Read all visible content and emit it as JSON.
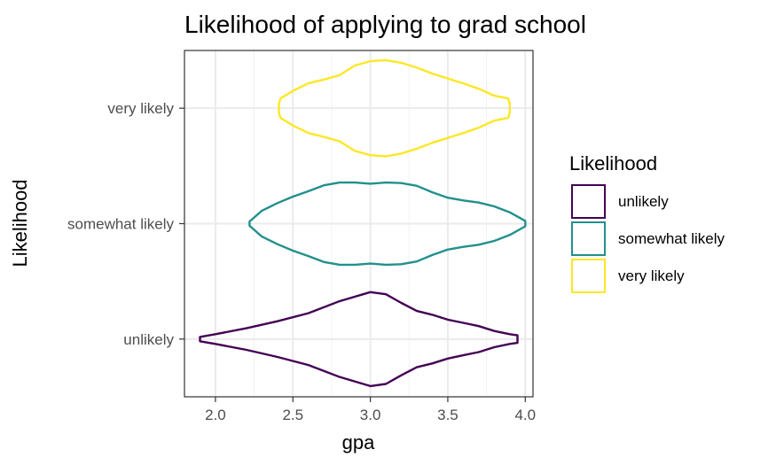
{
  "chart_data": {
    "type": "violin",
    "title": "Likelihood of applying to grad school",
    "xlabel": "gpa",
    "ylabel": "Likelihood",
    "xlim": [
      1.8,
      4.05
    ],
    "x_ticks": [
      "2.0",
      "2.5",
      "3.0",
      "3.5",
      "4.0"
    ],
    "x_tick_values": [
      2.0,
      2.5,
      3.0,
      3.5,
      4.0
    ],
    "categories": [
      "unlikely",
      "somewhat likely",
      "very likely"
    ],
    "grid": true,
    "legend": {
      "title": "Likelihood",
      "placement": "right",
      "entries": [
        "unlikely",
        "somewhat likely",
        "very likely"
      ]
    },
    "series": [
      {
        "name": "unlikely",
        "color": "#440154",
        "density": [
          [
            1.9,
            0.04
          ],
          [
            2.0,
            0.09
          ],
          [
            2.2,
            0.2
          ],
          [
            2.4,
            0.33
          ],
          [
            2.6,
            0.48
          ],
          [
            2.8,
            0.7
          ],
          [
            3.0,
            0.87
          ],
          [
            3.1,
            0.83
          ],
          [
            3.2,
            0.67
          ],
          [
            3.3,
            0.52
          ],
          [
            3.4,
            0.45
          ],
          [
            3.5,
            0.36
          ],
          [
            3.6,
            0.3
          ],
          [
            3.7,
            0.24
          ],
          [
            3.8,
            0.15
          ],
          [
            3.9,
            0.09
          ],
          [
            3.95,
            0.07
          ]
        ]
      },
      {
        "name": "somewhat likely",
        "color": "#21908C",
        "density": [
          [
            2.22,
            0.04
          ],
          [
            2.3,
            0.24
          ],
          [
            2.4,
            0.38
          ],
          [
            2.5,
            0.5
          ],
          [
            2.6,
            0.6
          ],
          [
            2.7,
            0.71
          ],
          [
            2.8,
            0.76
          ],
          [
            2.9,
            0.76
          ],
          [
            3.0,
            0.74
          ],
          [
            3.1,
            0.76
          ],
          [
            3.2,
            0.75
          ],
          [
            3.3,
            0.7
          ],
          [
            3.4,
            0.58
          ],
          [
            3.5,
            0.48
          ],
          [
            3.6,
            0.43
          ],
          [
            3.7,
            0.39
          ],
          [
            3.8,
            0.32
          ],
          [
            3.9,
            0.21
          ],
          [
            4.0,
            0.05
          ]
        ]
      },
      {
        "name": "very likely",
        "color": "#FDE725",
        "density": [
          [
            2.41,
            0.08
          ],
          [
            2.42,
            0.18
          ],
          [
            2.5,
            0.32
          ],
          [
            2.6,
            0.46
          ],
          [
            2.7,
            0.53
          ],
          [
            2.8,
            0.61
          ],
          [
            2.9,
            0.79
          ],
          [
            3.0,
            0.87
          ],
          [
            3.1,
            0.89
          ],
          [
            3.2,
            0.84
          ],
          [
            3.3,
            0.75
          ],
          [
            3.4,
            0.64
          ],
          [
            3.5,
            0.55
          ],
          [
            3.6,
            0.46
          ],
          [
            3.7,
            0.36
          ],
          [
            3.8,
            0.23
          ],
          [
            3.89,
            0.18
          ],
          [
            3.9,
            0.08
          ]
        ]
      }
    ]
  }
}
